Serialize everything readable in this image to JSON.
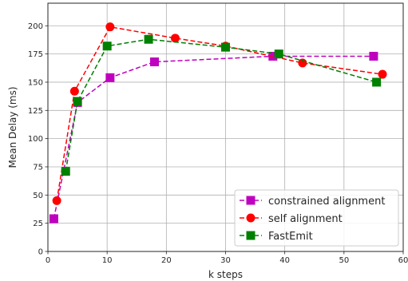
{
  "chart_data": {
    "type": "line",
    "title": "",
    "xlabel": "k steps",
    "ylabel": "Mean Delay (ms)",
    "xlim": [
      0,
      60
    ],
    "ylim": [
      0,
      220
    ],
    "xticks": [
      0,
      10,
      20,
      30,
      40,
      50,
      60
    ],
    "yticks": [
      0,
      25,
      50,
      75,
      100,
      125,
      150,
      175,
      200
    ],
    "grid": true,
    "legend_position": "bottom-right",
    "series": [
      {
        "name": "constrained alignment",
        "color": "#bf00bf",
        "marker": "square",
        "x": [
          1,
          5,
          10.5,
          18,
          38,
          55
        ],
        "y": [
          29,
          132,
          154,
          168,
          173,
          173
        ]
      },
      {
        "name": "self alignment",
        "color": "#ff0000",
        "marker": "circle",
        "x": [
          1.5,
          4.5,
          10.5,
          21.5,
          30,
          43,
          56.5
        ],
        "y": [
          45,
          142,
          199,
          189,
          182,
          167,
          157
        ]
      },
      {
        "name": "FastEmit",
        "color": "#008000",
        "marker": "square",
        "x": [
          3,
          5,
          10,
          17,
          30,
          39,
          55.5
        ],
        "y": [
          71,
          133,
          182,
          188,
          181,
          175,
          150
        ]
      }
    ]
  }
}
